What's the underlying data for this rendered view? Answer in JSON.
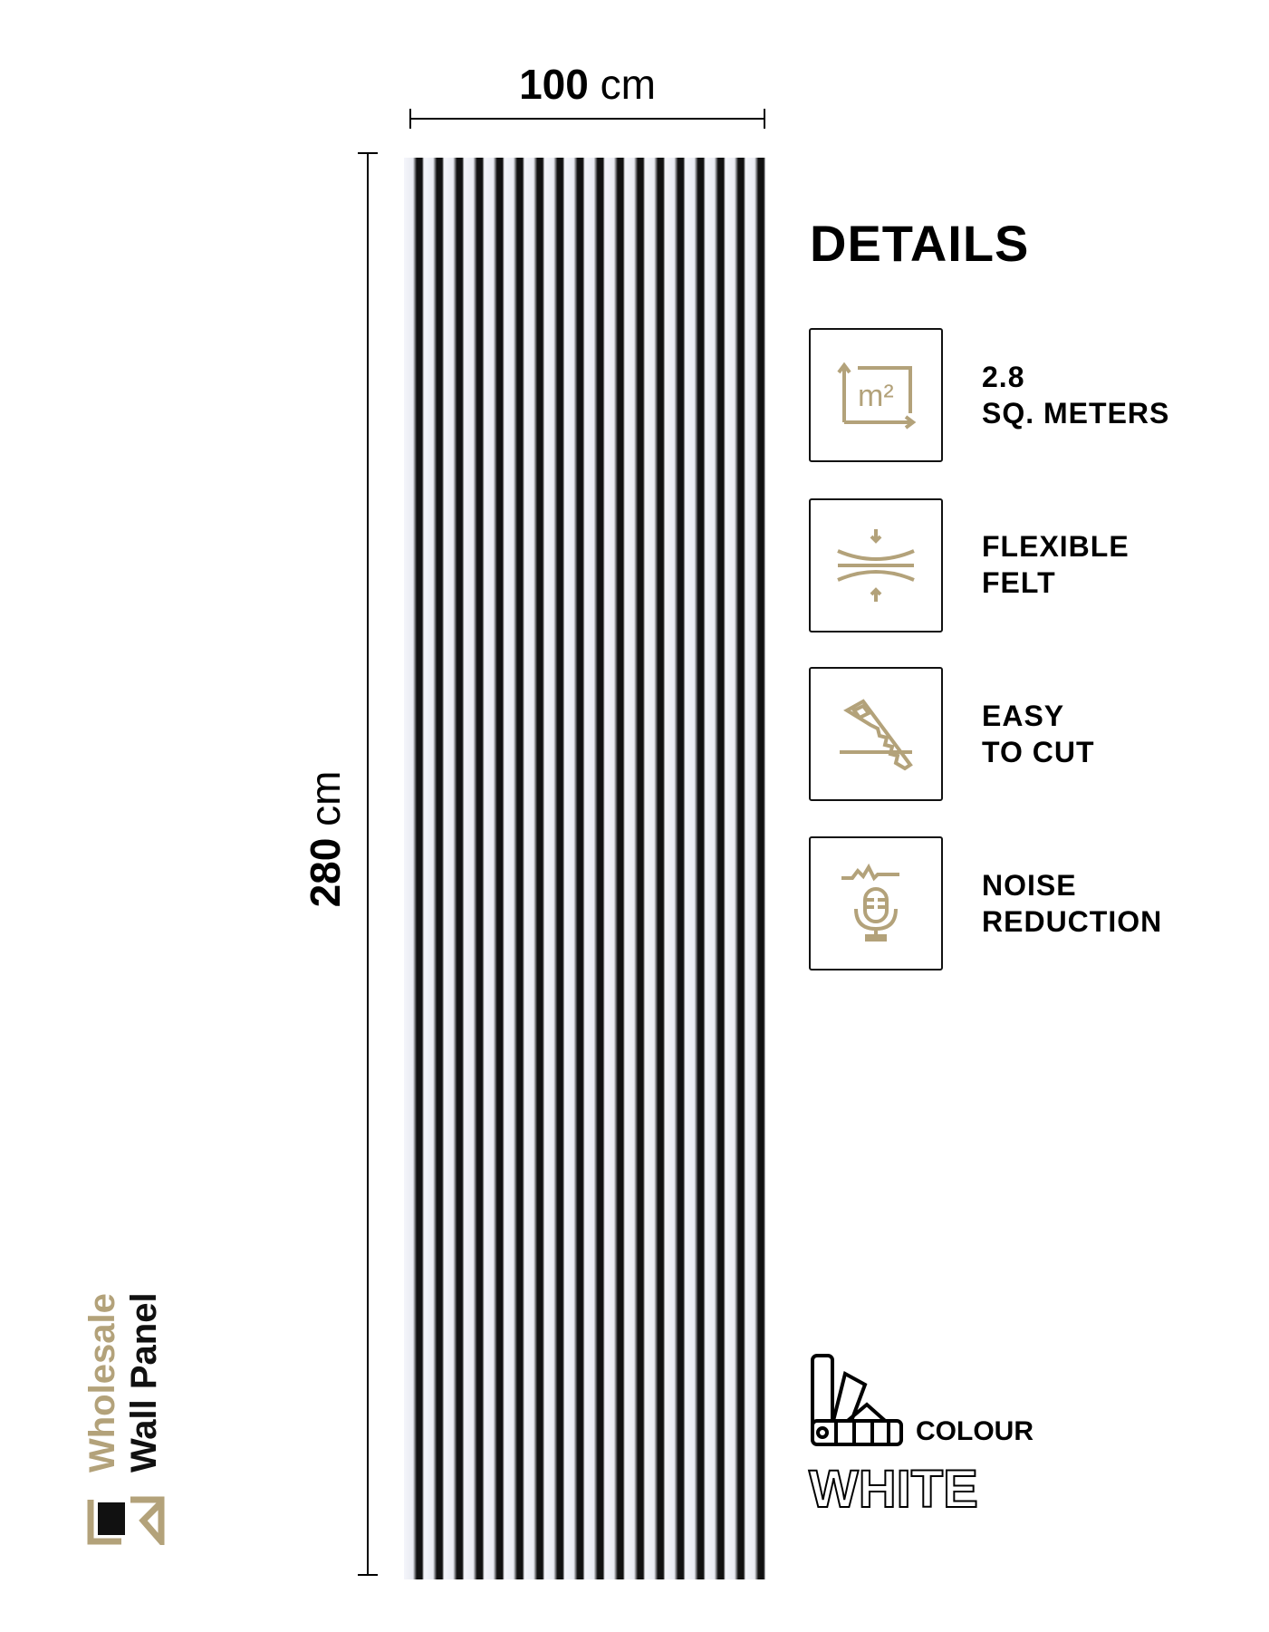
{
  "dimensions": {
    "width_value": "100",
    "width_unit": "cm",
    "height_value": "280",
    "height_unit": "cm"
  },
  "details": {
    "title": "DETAILS",
    "features": [
      {
        "icon": "area-m2-icon",
        "line1": "2.8",
        "line2": "SQ. METERS"
      },
      {
        "icon": "flexible-compress-icon",
        "line1": "FLEXIBLE",
        "line2": "FELT"
      },
      {
        "icon": "saw-icon",
        "line1": "EASY",
        "line2": "TO CUT"
      },
      {
        "icon": "microphone-noise-icon",
        "line1": "NOISE",
        "line2": "REDUCTION"
      }
    ]
  },
  "colour": {
    "label": "COLOUR",
    "value": "WHITE",
    "icon": "colour-swatch-icon"
  },
  "brand": {
    "line1": "Wholesale",
    "line2": "Wall Panel"
  },
  "colors": {
    "gold": "#b3a27a",
    "black": "#111111"
  }
}
